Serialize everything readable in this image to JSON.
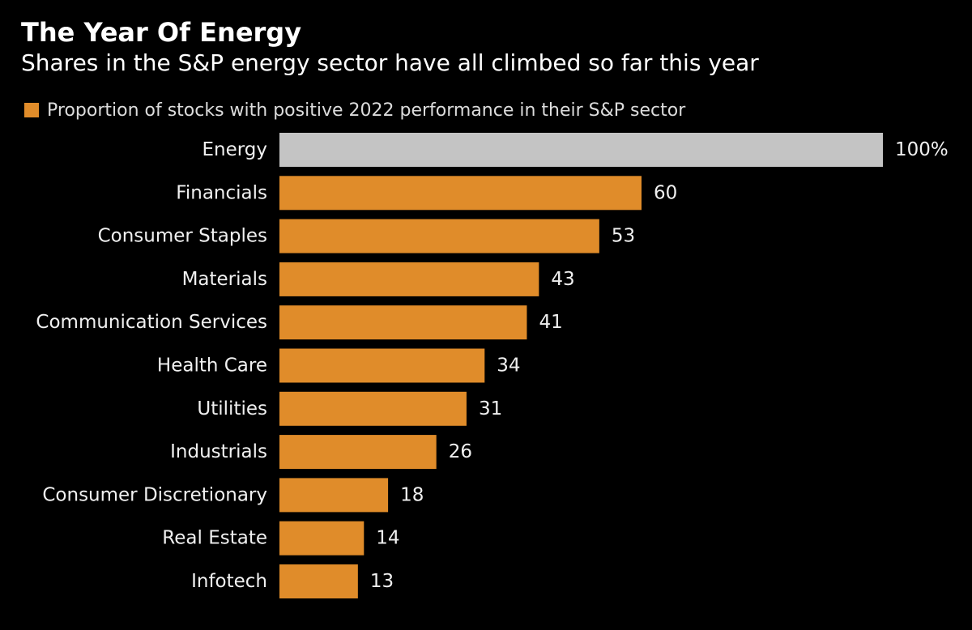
{
  "title": "The Year Of Energy",
  "subtitle": "Shares in the S&P energy sector have all climbed so far this year",
  "colors": {
    "background": "#000000",
    "bar": "#e08c2a",
    "highlight_bar": "#c4c4c4",
    "text": "#ffffff"
  },
  "chart_data": {
    "type": "bar",
    "orientation": "horizontal",
    "title": "The Year Of Energy",
    "subtitle": "Shares in the S&P energy sector have all climbed so far this year",
    "legend": {
      "placement": "top-left",
      "entries": [
        "Proportion of stocks with positive 2022 performance in their S&P sector"
      ]
    },
    "categories": [
      "Energy",
      "Financials",
      "Consumer Staples",
      "Materials",
      "Communication Services",
      "Health Care",
      "Utilities",
      "Industrials",
      "Consumer Discretionary",
      "Real Estate",
      "Infotech"
    ],
    "series": [
      {
        "name": "Proportion of stocks with positive 2022 performance in their S&P sector",
        "values": [
          100,
          60,
          53,
          43,
          41,
          34,
          31,
          26,
          18,
          14,
          13
        ]
      }
    ],
    "data_labels": [
      "100%",
      "60",
      "53",
      "43",
      "41",
      "34",
      "31",
      "26",
      "18",
      "14",
      "13"
    ],
    "highlight_category": "Energy",
    "xlim": [
      0,
      100
    ],
    "xlabel": "",
    "ylabel": "",
    "grid": false
  }
}
